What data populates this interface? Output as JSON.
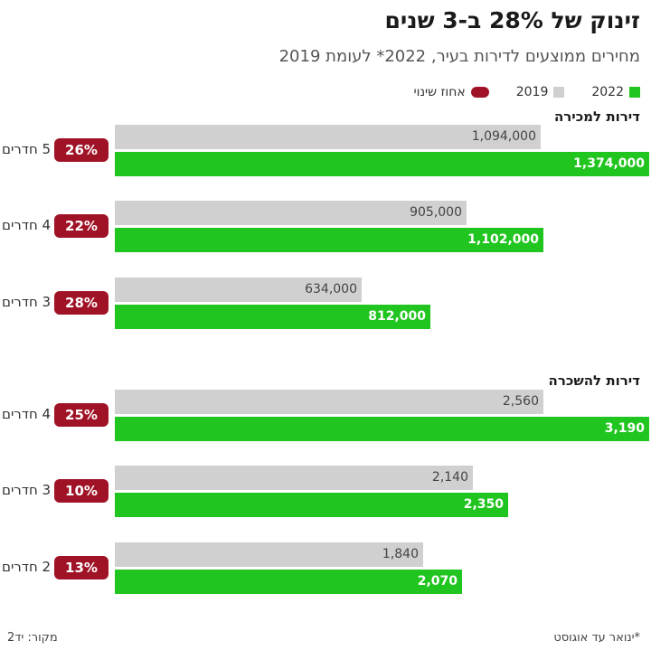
{
  "title": "זינוק של 28% ב-3 שנים",
  "subtitle": "מחירים ממוצעים לדירות בעיר, 2022* לעומת 2019",
  "legend": {
    "y2022": "2022",
    "y2019": "2019",
    "change": "אחוז שינוי"
  },
  "colors": {
    "c2022": "#21c51f",
    "c2019": "#d0d0d0",
    "change": "#a01226"
  },
  "footnote": "*ינואר עד אוגוסט",
  "source": "מקור: יד2",
  "chart_data": {
    "type": "bar",
    "orientation": "horizontal",
    "title": "זינוק של 28% ב-3 שנים",
    "subtitle": "מחירים ממוצעים לדירות בעיר, 2022* לעומת 2019",
    "series_names": [
      "2022",
      "2019"
    ],
    "groups": [
      {
        "name": "דירות למכירה",
        "scale_max": 1374000,
        "rows": [
          {
            "label": "5 חדרים",
            "change": "26%",
            "v2019": 1094000,
            "v2022": 1374000,
            "l2019": "1,094,000",
            "l2022": "1,374,000"
          },
          {
            "label": "4 חדרים",
            "change": "22%",
            "v2019": 905000,
            "v2022": 1102000,
            "l2019": "905,000",
            "l2022": "1,102,000"
          },
          {
            "label": "3 חדרים",
            "change": "28%",
            "v2019": 634000,
            "v2022": 812000,
            "l2019": "634,000",
            "l2022": "812,000"
          }
        ]
      },
      {
        "name": "דירות להשכרה",
        "scale_max": 3190,
        "rows": [
          {
            "label": "4 חדרים",
            "change": "25%",
            "v2019": 2560,
            "v2022": 3190,
            "l2019": "2,560",
            "l2022": "3,190"
          },
          {
            "label": "3 חדרים",
            "change": "10%",
            "v2019": 2140,
            "v2022": 2350,
            "l2019": "2,140",
            "l2022": "2,350"
          },
          {
            "label": "2 חדרים",
            "change": "13%",
            "v2019": 1840,
            "v2022": 2070,
            "l2019": "1,840",
            "l2022": "2,070"
          }
        ]
      }
    ]
  }
}
